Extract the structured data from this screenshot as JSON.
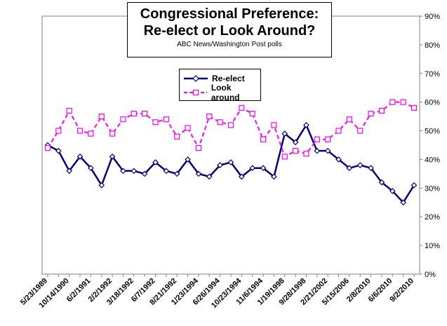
{
  "chart_data": {
    "type": "line",
    "title": "Congressional Preference:\nRe-elect  or Look Around?",
    "subtitle": "ABC News/Washington Post polls",
    "x_tick_labels": [
      "5/23/1989",
      "10/14/1990",
      "6/2/1991",
      "2/2/1992",
      "3/18/1992",
      "6/7/1992",
      "8/21/1992",
      "1/23/1994",
      "6/26/1994",
      "10/23/1994",
      "11/6/1994",
      "1/19/1998",
      "9/28/1998",
      "2/21/2002",
      "5/15/2006",
      "2/8/2010",
      "6/6/2010",
      "9/2/2010"
    ],
    "y_tick_labels": [
      "0%",
      "10%",
      "20%",
      "30%",
      "40%",
      "50%",
      "60%",
      "70%",
      "80%",
      "90%"
    ],
    "ylim": [
      0,
      90
    ],
    "y_axis_side": "right",
    "legend_position": "top-center",
    "grid": false,
    "series": [
      {
        "name": "Re-elect",
        "color": "#000080",
        "marker": "diamond",
        "values": [
          45,
          43,
          36,
          41,
          37,
          31,
          41,
          36,
          36,
          35,
          39,
          36,
          35,
          40,
          35,
          34,
          38,
          39,
          34,
          37,
          37,
          34,
          49,
          46,
          52,
          43,
          43,
          40,
          37,
          38,
          37,
          32,
          29,
          25,
          31
        ]
      },
      {
        "name": "Look around",
        "color": "#ff00ff",
        "marker": "square",
        "values": [
          44,
          50,
          57,
          50,
          49,
          55,
          49,
          54,
          56,
          56,
          53,
          54,
          48,
          51,
          44,
          55,
          53,
          52,
          58,
          56,
          47,
          52,
          41,
          43,
          42,
          47,
          47,
          50,
          54,
          50,
          56,
          57,
          60,
          60,
          58
        ]
      }
    ]
  }
}
